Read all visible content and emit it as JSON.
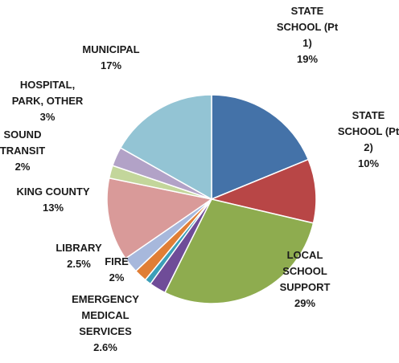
{
  "chart_data": {
    "type": "pie",
    "title": "",
    "slices": [
      {
        "label": [
          "STATE",
          "SCHOOL  (Pt",
          "1)"
        ],
        "pct_label": "19%",
        "value": 19,
        "color": "#4472a8"
      },
      {
        "label": [
          "STATE",
          "SCHOOL  (Pt",
          "2)"
        ],
        "pct_label": "10%",
        "value": 10,
        "color": "#b84646"
      },
      {
        "label": [
          "LOCAL",
          "SCHOOL",
          "SUPPORT"
        ],
        "pct_label": "29%",
        "value": 29,
        "color": "#8eac4f"
      },
      {
        "label": [
          "EMERGENCY",
          "MEDICAL",
          "SERVICES"
        ],
        "pct_label": "2.6%",
        "value": 2.6,
        "color": "#6f4c98"
      },
      {
        "label": [],
        "pct_label": "",
        "value": 1,
        "color": "#3c9fb8"
      },
      {
        "label": [
          "FIRE"
        ],
        "pct_label": "2%",
        "value": 2,
        "color": "#e07e35"
      },
      {
        "label": [
          "LIBRARY"
        ],
        "pct_label": "2.5%",
        "value": 2.5,
        "color": "#a7b8dc"
      },
      {
        "label": [
          "KING COUNTY"
        ],
        "pct_label": "13%",
        "value": 13,
        "color": "#d99a99"
      },
      {
        "label": [
          "SOUND",
          "TRANSIT"
        ],
        "pct_label": "2%",
        "value": 2,
        "color": "#c3d69b"
      },
      {
        "label": [
          "HOSPITAL,",
          "PARK, OTHER"
        ],
        "pct_label": "3%",
        "value": 3,
        "color": "#b2a2c7"
      },
      {
        "label": [
          "MUNICIPAL"
        ],
        "pct_label": "17%",
        "value": 17,
        "color": "#93c4d4"
      }
    ]
  }
}
